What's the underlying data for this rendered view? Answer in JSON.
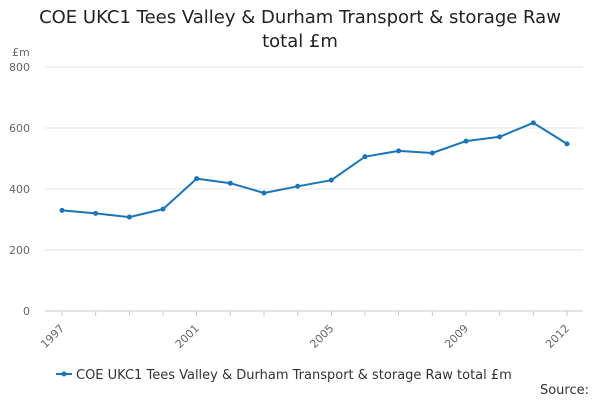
{
  "chart_data": {
    "type": "line",
    "title_line1": "COE UKC1 Tees Valley & Durham Transport & storage Raw",
    "title_line2": "total £m",
    "ylabel": "£m",
    "xlabel": "",
    "ylim": [
      0,
      800
    ],
    "yticks": [
      0,
      200,
      400,
      600,
      800
    ],
    "xlim": [
      1997,
      2012
    ],
    "xticks": [
      1997,
      2001,
      2005,
      2009,
      2012
    ],
    "grid": true,
    "legend_position": "bottom",
    "series": [
      {
        "name": "COE UKC1 Tees Valley & Durham Transport & storage Raw total £m",
        "color": "#1a75bb",
        "x": [
          1997,
          1998,
          1999,
          2000,
          2001,
          2002,
          2003,
          2004,
          2005,
          2006,
          2007,
          2008,
          2009,
          2010,
          2011,
          2012
        ],
        "values": [
          330,
          320,
          308,
          334,
          434,
          419,
          387,
          409,
          429,
          506,
          525,
          518,
          557,
          571,
          617,
          548
        ]
      }
    ],
    "source_label": "Source:"
  }
}
